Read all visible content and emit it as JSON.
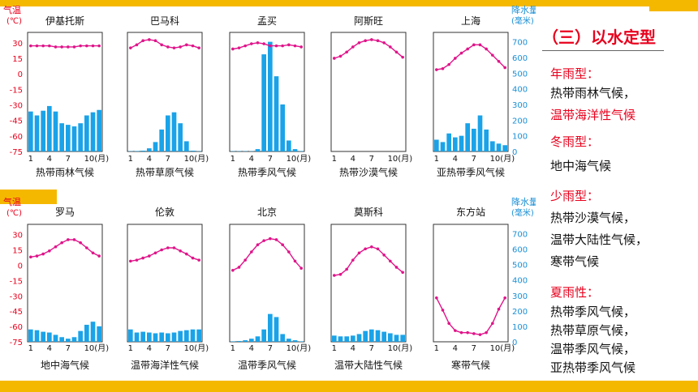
{
  "chart_data": {
    "type": "climate",
    "y_left_label_1": "气温",
    "y_left_label_2": "(℃)",
    "y_right_label_1": "降水量",
    "y_right_label_2": "(毫米)",
    "temp_ticks": [
      "30",
      "15",
      "0",
      "-15",
      "-30",
      "-45",
      "-60",
      "-75"
    ],
    "precip_ticks": [
      "700",
      "600",
      "500",
      "400",
      "300",
      "200",
      "100",
      "0"
    ],
    "x_ticks": [
      "1",
      "4",
      "7",
      "10(月)"
    ],
    "temp_range": [
      -75,
      40
    ],
    "precip_range": [
      0,
      760
    ],
    "rows": [
      [
        {
          "city": "伊基托斯",
          "label": "热带雨林气候",
          "temp": [
            27,
            27,
            27,
            27,
            26,
            26,
            26,
            26,
            27,
            27,
            27,
            27
          ],
          "precip": [
            255,
            230,
            260,
            290,
            255,
            180,
            170,
            160,
            180,
            230,
            250,
            265
          ]
        },
        {
          "city": "巴马科",
          "label": "热带草原气候",
          "temp": [
            25,
            28,
            32,
            33,
            32,
            28,
            26,
            25,
            26,
            28,
            27,
            25
          ],
          "precip": [
            2,
            3,
            5,
            20,
            60,
            140,
            230,
            250,
            180,
            65,
            5,
            2
          ]
        },
        {
          "city": "孟买",
          "label": "热带季风气候",
          "temp": [
            24,
            25,
            27,
            29,
            30,
            29,
            27,
            27,
            27,
            28,
            27,
            26
          ],
          "precip": [
            2,
            2,
            2,
            2,
            15,
            620,
            700,
            480,
            300,
            70,
            15,
            3
          ]
        },
        {
          "city": "阿斯旺",
          "label": "热带沙漠气候",
          "temp": [
            15,
            17,
            21,
            26,
            30,
            32,
            33,
            32,
            30,
            26,
            21,
            16
          ],
          "precip": [
            0,
            0,
            0,
            0,
            0,
            0,
            0,
            0,
            0,
            0,
            0,
            0
          ]
        },
        {
          "city": "上海",
          "label": "亚热带季风气候",
          "temp": [
            4,
            5,
            9,
            15,
            20,
            24,
            28,
            28,
            24,
            18,
            12,
            6
          ],
          "precip": [
            75,
            60,
            115,
            90,
            100,
            180,
            145,
            230,
            140,
            65,
            50,
            40
          ]
        }
      ],
      [
        {
          "city": "罗马",
          "label": "地中海气候",
          "temp": [
            8,
            9,
            11,
            14,
            18,
            22,
            25,
            25,
            22,
            17,
            12,
            9
          ],
          "precip": [
            80,
            75,
            65,
            60,
            45,
            30,
            20,
            30,
            70,
            110,
            130,
            100
          ]
        },
        {
          "city": "伦敦",
          "label": "温带海洋性气候",
          "temp": [
            4,
            5,
            7,
            9,
            12,
            15,
            17,
            17,
            14,
            11,
            7,
            5
          ],
          "precip": [
            80,
            60,
            65,
            60,
            55,
            60,
            55,
            60,
            70,
            75,
            80,
            80
          ]
        },
        {
          "city": "北京",
          "label": "温带季风气候",
          "temp": [
            -5,
            -2,
            5,
            13,
            20,
            24,
            26,
            25,
            20,
            13,
            4,
            -3
          ],
          "precip": [
            3,
            5,
            10,
            20,
            35,
            80,
            180,
            160,
            50,
            20,
            10,
            3
          ]
        },
        {
          "city": "莫斯科",
          "label": "温带大陆性气候",
          "temp": [
            -10,
            -9,
            -4,
            5,
            12,
            16,
            18,
            16,
            10,
            4,
            -2,
            -7
          ],
          "precip": [
            40,
            35,
            35,
            40,
            50,
            70,
            80,
            75,
            65,
            55,
            45,
            45
          ]
        },
        {
          "city": "东方站",
          "label": "寒带气候",
          "temp": [
            -32,
            -44,
            -57,
            -64,
            -66,
            -66,
            -67,
            -68,
            -66,
            -57,
            -43,
            -32
          ],
          "precip": [
            0,
            0,
            0,
            0,
            0,
            0,
            0,
            0,
            0,
            0,
            0,
            0
          ]
        }
      ]
    ]
  },
  "side": {
    "title": "（三）以水定型",
    "sections": [
      {
        "heading": "年雨型：",
        "items": [
          {
            "text": "热带雨林气候，",
            "color": "#111111"
          },
          {
            "text": "温带海洋性气候",
            "color": "#e8001c"
          }
        ]
      },
      {
        "heading": "冬雨型：",
        "items": [
          {
            "text": "地中海气候",
            "color": "#111111"
          }
        ]
      },
      {
        "heading": "少雨型：",
        "items": [
          {
            "text": "热带沙漠气候，",
            "color": "#111111"
          },
          {
            "text": "温带大陆性气候，",
            "color": "#111111"
          },
          {
            "text": "寒带气候",
            "color": "#111111"
          }
        ]
      },
      {
        "heading": "夏雨性：",
        "items": [
          {
            "text": "热带季风气候，",
            "color": "#111111"
          },
          {
            "text": "热带草原气候，",
            "color": "#111111"
          },
          {
            "text": "温带季风气候，",
            "color": "#111111"
          },
          {
            "text": "亚热带季风气候",
            "color": "#111111"
          }
        ]
      }
    ]
  },
  "colors": {
    "frame": "#f5b800",
    "bar": "#1aa3e8",
    "line": "#e0148a",
    "accent": "#e8001c"
  }
}
